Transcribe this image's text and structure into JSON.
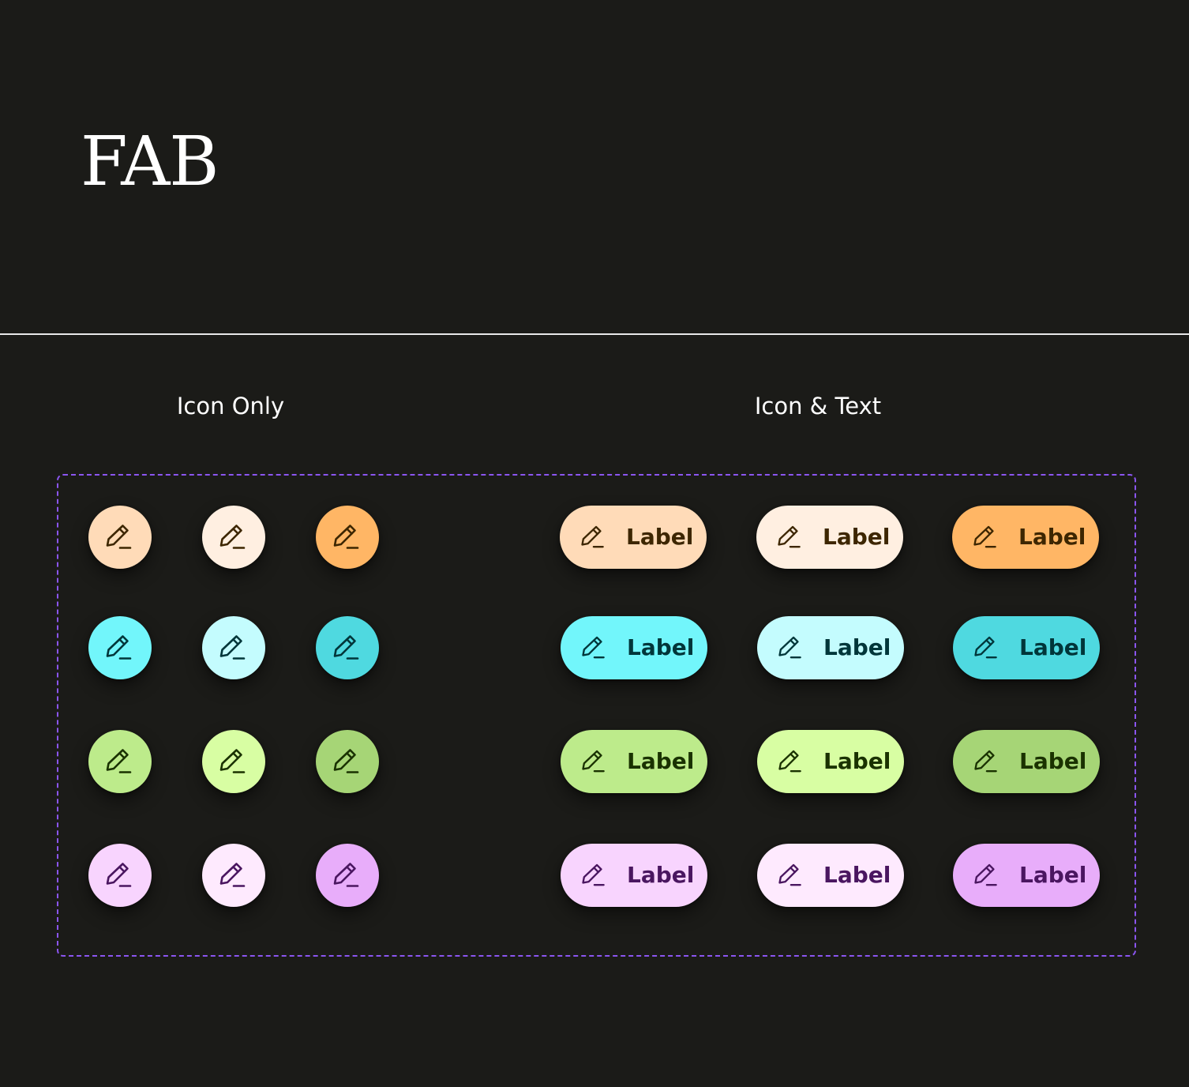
{
  "page": {
    "title": "FAB"
  },
  "sections": {
    "icon_only": "Icon Only",
    "icon_text": "Icon & Text"
  },
  "fab": {
    "icon": "pencil-edit-icon",
    "label": "Label"
  },
  "palettes": [
    {
      "name": "orange",
      "ink": "#3d2600",
      "fills": [
        "#ffdbb8",
        "#ffefe1",
        "#ffb665"
      ]
    },
    {
      "name": "cyan",
      "ink": "#00363a",
      "fills": [
        "#72f6fb",
        "#c4fcfe",
        "#4fd9e0"
      ]
    },
    {
      "name": "green",
      "ink": "#1a3200",
      "fills": [
        "#bdeb8b",
        "#d8fea3",
        "#a6d576"
      ]
    },
    {
      "name": "purple",
      "ink": "#4a1660",
      "fills": [
        "#f8d4fe",
        "#feeafe",
        "#e8adfa"
      ]
    }
  ]
}
